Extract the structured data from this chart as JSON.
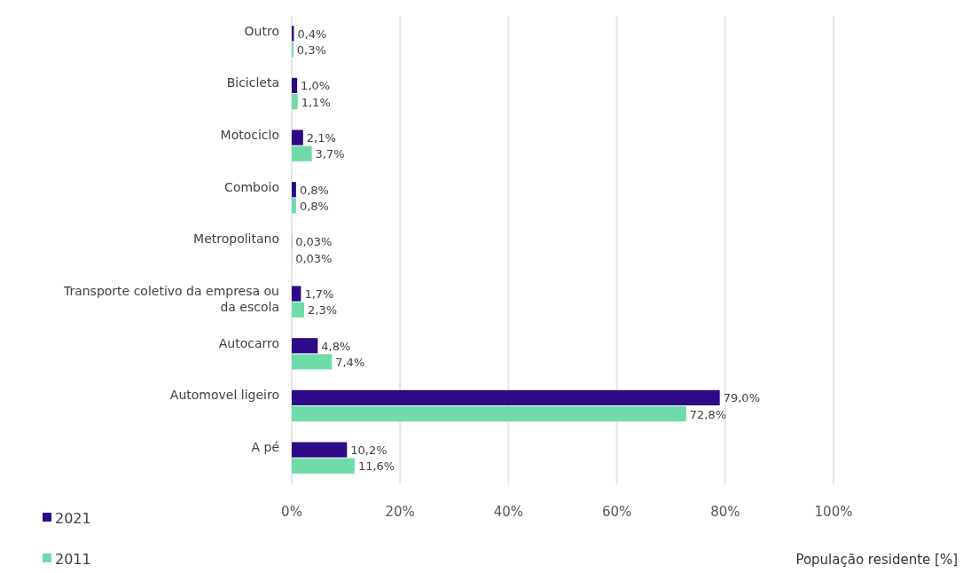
{
  "chart_data": {
    "type": "bar",
    "orientation": "horizontal",
    "xlabel": "População residente [%]",
    "categories": [
      "Outro",
      "Bicicleta",
      "Motociclo",
      "Comboio",
      "Metropolitano",
      "Transporte coletivo da empresa ou da escola",
      "Autocarro",
      "Automovel ligeiro",
      "A pé"
    ],
    "series": [
      {
        "name": "2021",
        "color": "#2e0a86",
        "values": [
          0.4,
          1.0,
          2.1,
          0.8,
          0.03,
          1.7,
          4.8,
          79.0,
          10.2
        ],
        "value_labels": [
          "0,4%",
          "1,0%",
          "2,1%",
          "0,8%",
          "0,03%",
          "1,7%",
          "4,8%",
          "79,0%",
          "10,2%"
        ]
      },
      {
        "name": "2011",
        "color": "#6fdba9",
        "values": [
          0.3,
          1.1,
          3.7,
          0.8,
          0.03,
          2.3,
          7.4,
          72.8,
          11.6
        ],
        "value_labels": [
          "0,3%",
          "1,1%",
          "3,7%",
          "0,8%",
          "0,03%",
          "2,3%",
          "7,4%",
          "72,8%",
          "11,6%"
        ]
      }
    ],
    "xlim": [
      0,
      100
    ],
    "xticks": [
      {
        "value": 0,
        "label": "0%"
      },
      {
        "value": 20,
        "label": "20%"
      },
      {
        "value": 40,
        "label": "40%"
      },
      {
        "value": 60,
        "label": "60%"
      },
      {
        "value": 80,
        "label": "80%"
      },
      {
        "value": 100,
        "label": "100%"
      }
    ],
    "grid": "x",
    "legend": "bottom left"
  }
}
